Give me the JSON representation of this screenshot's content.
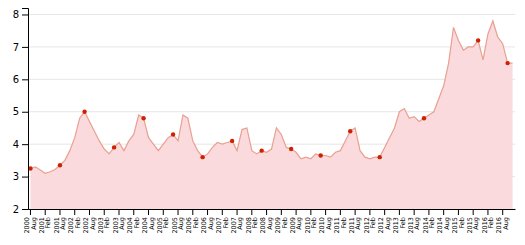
{
  "chart_data": {
    "type": "area",
    "categories": [
      "2000\nAug",
      null,
      null,
      "2001\nFeb",
      null,
      null,
      "2001\nAug",
      null,
      null,
      "2002\nFeb",
      null,
      null,
      "2002\nAug",
      null,
      null,
      "2003\nFeb",
      null,
      null,
      "2003\nAug",
      null,
      null,
      "2004\nFeb",
      null,
      null,
      "2004\nAug",
      null,
      null,
      "2005\nFeb",
      null,
      null,
      "2005\nAug",
      null,
      null,
      "2006\nFeb",
      null,
      null,
      "2006\nAug",
      null,
      null,
      "2007\nFeb",
      null,
      null,
      "2007\nAug",
      null,
      null,
      "2008\nFeb",
      null,
      null,
      "2008\nAug",
      null,
      null,
      "2009\nFeb",
      null,
      null,
      "2009\nAug",
      null,
      null,
      "2010\nFeb",
      null,
      null,
      "2010\nAug",
      null,
      null,
      "2011\nFeb",
      null,
      null,
      "2011\nAug",
      null,
      null,
      "2012\nFeb",
      null,
      null,
      "2012\nAug",
      null,
      null,
      "2013\nFeb",
      null,
      null,
      "2013\nAug",
      null,
      null,
      "2014\nFeb",
      null,
      null,
      "2014\nAug",
      null,
      null,
      "2015\nFeb",
      null,
      null,
      "2015\nAug",
      null,
      null,
      "2016\nFeb",
      null,
      null,
      "2016\nAug",
      null,
      null
    ],
    "series": [
      {
        "type": "area",
        "color": "#fadadd",
        "values": [
          3.25,
          3.3,
          3.2,
          3.1,
          3.15,
          3.22,
          3.35,
          3.5,
          3.8,
          4.2,
          4.8,
          5.0,
          4.7,
          4.4,
          4.1,
          3.85,
          3.7,
          3.9,
          4.05,
          3.8,
          4.1,
          4.3,
          4.9,
          4.8,
          4.2,
          4.0,
          3.8,
          4.0,
          4.2,
          4.3,
          4.1,
          4.9,
          4.8,
          4.1,
          3.8,
          3.6,
          3.7,
          3.9,
          4.05,
          4.0,
          4.05,
          4.1,
          3.8,
          4.45,
          4.5,
          3.8,
          3.7,
          3.8,
          3.75,
          3.85,
          4.5,
          4.3,
          3.9,
          3.85,
          3.75,
          3.55,
          3.6,
          3.55,
          3.7,
          3.65,
          3.65,
          3.6,
          3.75,
          3.8,
          4.1,
          4.4,
          4.5,
          3.8,
          3.6,
          3.55,
          3.6,
          3.6,
          3.9,
          4.2,
          4.5,
          5.0,
          5.1,
          4.8,
          4.85,
          4.7,
          4.8,
          4.9,
          5.0,
          5.4,
          5.8,
          6.5,
          7.6,
          7.2,
          6.9,
          7.0,
          7.0,
          7.2,
          6.6,
          7.4,
          7.8,
          7.3,
          7.1,
          6.5,
          6.5
        ]
      },
      {
        "type": "line",
        "color": "#e8a090",
        "values": [
          3.25,
          3.3,
          3.2,
          3.1,
          3.15,
          3.22,
          3.35,
          3.5,
          3.8,
          4.2,
          4.8,
          5.0,
          4.7,
          4.4,
          4.1,
          3.85,
          3.7,
          3.9,
          4.05,
          3.8,
          4.1,
          4.3,
          4.9,
          4.8,
          4.2,
          4.0,
          3.8,
          4.0,
          4.2,
          4.3,
          4.1,
          4.9,
          4.8,
          4.1,
          3.8,
          3.6,
          3.7,
          3.9,
          4.05,
          4.0,
          4.05,
          4.1,
          3.8,
          4.45,
          4.5,
          3.8,
          3.7,
          3.8,
          3.75,
          3.85,
          4.5,
          4.3,
          3.9,
          3.85,
          3.75,
          3.55,
          3.6,
          3.55,
          3.7,
          3.65,
          3.65,
          3.6,
          3.75,
          3.8,
          4.1,
          4.4,
          4.5,
          3.8,
          3.6,
          3.55,
          3.6,
          3.6,
          3.9,
          4.2,
          4.5,
          5.0,
          5.1,
          4.8,
          4.85,
          4.7,
          4.8,
          4.9,
          5.0,
          5.4,
          5.8,
          6.5,
          7.6,
          7.2,
          6.9,
          7.0,
          7.0,
          7.2,
          6.6,
          7.4,
          7.8,
          7.3,
          7.1,
          6.5,
          6.5
        ]
      },
      {
        "type": "scatter",
        "color": "#cc2200",
        "values": [
          3.25,
          null,
          null,
          null,
          null,
          null,
          3.35,
          null,
          null,
          null,
          null,
          5.0,
          null,
          null,
          null,
          null,
          null,
          3.9,
          null,
          null,
          null,
          null,
          null,
          4.8,
          null,
          null,
          null,
          null,
          null,
          4.3,
          null,
          null,
          null,
          null,
          null,
          3.6,
          null,
          null,
          null,
          null,
          null,
          4.1,
          null,
          null,
          null,
          null,
          null,
          3.8,
          null,
          null,
          null,
          null,
          null,
          3.85,
          null,
          null,
          null,
          null,
          null,
          3.65,
          null,
          null,
          null,
          null,
          null,
          4.4,
          null,
          null,
          null,
          null,
          null,
          3.6,
          null,
          null,
          null,
          null,
          null,
          null,
          null,
          null,
          4.8,
          null,
          null,
          null,
          null,
          null,
          null,
          null,
          null,
          null,
          null,
          7.2,
          null,
          null,
          null,
          null,
          null,
          6.5,
          null
        ]
      }
    ],
    "ylim": [
      2,
      8.2
    ],
    "yticks": [
      2,
      3,
      4,
      5,
      6,
      7,
      8
    ],
    "grid": true
  }
}
